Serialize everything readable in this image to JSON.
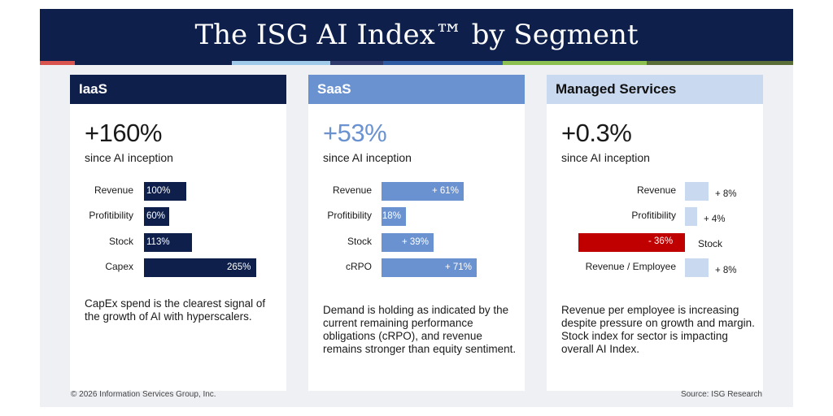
{
  "title": "The ISG AI Index™ by Segment",
  "stripe_colors": [
    "#d9534f",
    "#0d1f4a",
    "#9ec9e8",
    "#2d3a6b",
    "#2d5aa0",
    "#8cc152",
    "#5b6e3a"
  ],
  "footer": {
    "copyright": "© 2026 Information Services Group, Inc.",
    "source": "Source: ISG Research"
  },
  "cards": {
    "iaas": {
      "name": "IaaS",
      "headline": "+160%",
      "since": "since AI inception",
      "description": "CapEx spend is the clearest signal of the growth of AI with hyperscalers."
    },
    "saas": {
      "name": "SaaS",
      "headline": "+53%",
      "since": "since AI inception",
      "description": "Demand is holding as indicated by the current remaining performance obligations (cRPO), and revenue remains stronger than equity sentiment."
    },
    "managed": {
      "name": "Managed Services",
      "headline": "+0.3%",
      "since": "since AI inception",
      "description": "Revenue per employee is increasing despite pressure on growth and margin. Stock index for sector is impacting overall AI Index."
    }
  },
  "chart_data": [
    {
      "type": "bar",
      "orientation": "horizontal",
      "title": "IaaS",
      "categories": [
        "Revenue",
        "Profitibility",
        "Stock",
        "Capex"
      ],
      "values": [
        100,
        60,
        113,
        265
      ],
      "labels": [
        "100%",
        "60%",
        "113%",
        "265%"
      ],
      "unit": "%",
      "color": "#0d1f4a"
    },
    {
      "type": "bar",
      "orientation": "horizontal",
      "title": "SaaS",
      "categories": [
        "Revenue",
        "Profitibility",
        "Stock",
        "cRPO"
      ],
      "values": [
        61,
        18,
        39,
        71
      ],
      "labels": [
        "+ 61%",
        "+ 18%",
        "+ 39%",
        "+ 71%"
      ],
      "unit": "%",
      "color": "#6b92d0"
    },
    {
      "type": "bar",
      "orientation": "horizontal",
      "title": "Managed Services",
      "categories": [
        "Revenue",
        "Profitibility",
        "Stock",
        "Revenue / Employee"
      ],
      "values": [
        8,
        4,
        -36,
        8
      ],
      "labels": [
        "+ 8%",
        "+ 4%",
        "- 36%",
        "+ 8%"
      ],
      "unit": "%",
      "color": "#c9d9ef",
      "negative_color": "#c00000"
    }
  ]
}
